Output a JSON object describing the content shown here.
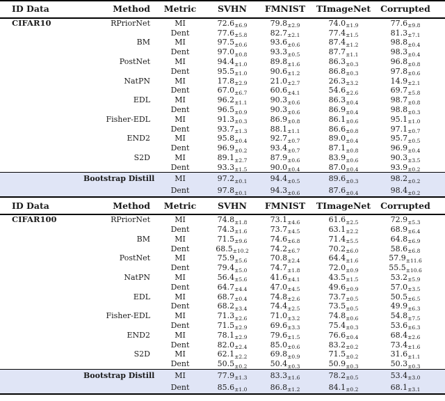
{
  "colors": {
    "highlight_bg": "#e0e5f6",
    "rule": "#000000",
    "text": "#1b1b1b"
  },
  "table": {
    "columns": [
      "ID Data",
      "Method",
      "Metric",
      "SVHN",
      "FMNIST",
      "TImageNet",
      "Corrupted"
    ],
    "sections": [
      {
        "id_data": "CIFAR10",
        "groups": [
          {
            "method": "RPriorNet",
            "rows": [
              {
                "metric": "MI",
                "values": [
                  [
                    "72.6",
                    "6.9"
                  ],
                  [
                    "79.8",
                    "2.9"
                  ],
                  [
                    "74.0",
                    "1.9"
                  ],
                  [
                    "77.6",
                    "9.8"
                  ]
                ]
              },
              {
                "metric": "Dent",
                "values": [
                  [
                    "77.6",
                    "5.8"
                  ],
                  [
                    "82.7",
                    "2.1"
                  ],
                  [
                    "77.4",
                    "1.5"
                  ],
                  [
                    "81.3",
                    "7.1"
                  ]
                ]
              }
            ]
          },
          {
            "method": "BM",
            "rows": [
              {
                "metric": "MI",
                "values": [
                  [
                    "97.5",
                    "0.6"
                  ],
                  [
                    "93.6",
                    "0.6"
                  ],
                  [
                    "87.4",
                    "1.2"
                  ],
                  [
                    "98.8",
                    "0.4"
                  ]
                ]
              },
              {
                "metric": "Dent",
                "values": [
                  [
                    "97.0",
                    "0.8"
                  ],
                  [
                    "93.3",
                    "0.5"
                  ],
                  [
                    "87.7",
                    "1.1"
                  ],
                  [
                    "98.3",
                    "0.4"
                  ]
                ]
              }
            ]
          },
          {
            "method": "PostNet",
            "rows": [
              {
                "metric": "MI",
                "values": [
                  [
                    "94.4",
                    "1.0"
                  ],
                  [
                    "89.8",
                    "1.6"
                  ],
                  [
                    "86.3",
                    "0.3"
                  ],
                  [
                    "96.8",
                    "0.8"
                  ]
                ]
              },
              {
                "metric": "Dent",
                "values": [
                  [
                    "95.5",
                    "1.0"
                  ],
                  [
                    "90.6",
                    "1.2"
                  ],
                  [
                    "86.8",
                    "0.3"
                  ],
                  [
                    "97.8",
                    "0.6"
                  ]
                ]
              }
            ]
          },
          {
            "method": "NatPN",
            "rows": [
              {
                "metric": "MI",
                "values": [
                  [
                    "17.8",
                    "2.9"
                  ],
                  [
                    "21.0",
                    "2.7"
                  ],
                  [
                    "26.3",
                    "3.2"
                  ],
                  [
                    "14.9",
                    "2.1"
                  ]
                ]
              },
              {
                "metric": "Dent",
                "values": [
                  [
                    "67.0",
                    "6.7"
                  ],
                  [
                    "60.6",
                    "4.1"
                  ],
                  [
                    "54.6",
                    "2.6"
                  ],
                  [
                    "69.7",
                    "5.8"
                  ]
                ]
              }
            ]
          },
          {
            "method": "EDL",
            "rows": [
              {
                "metric": "MI",
                "values": [
                  [
                    "96.2",
                    "1.1"
                  ],
                  [
                    "90.3",
                    "0.6"
                  ],
                  [
                    "86.3",
                    "0.4"
                  ],
                  [
                    "98.7",
                    "0.8"
                  ]
                ]
              },
              {
                "metric": "Dent",
                "values": [
                  [
                    "96.5",
                    "0.9"
                  ],
                  [
                    "90.3",
                    "0.6"
                  ],
                  [
                    "86.9",
                    "0.4"
                  ],
                  [
                    "98.8",
                    "0.3"
                  ]
                ]
              }
            ]
          },
          {
            "method": "Fisher-EDL",
            "rows": [
              {
                "metric": "MI",
                "values": [
                  [
                    "91.3",
                    "0.3"
                  ],
                  [
                    "86.9",
                    "0.8"
                  ],
                  [
                    "86.1",
                    "0.6"
                  ],
                  [
                    "95.1",
                    "1.0"
                  ]
                ]
              },
              {
                "metric": "Dent",
                "values": [
                  [
                    "93.7",
                    "1.3"
                  ],
                  [
                    "88.1",
                    "1.1"
                  ],
                  [
                    "86.6",
                    "0.8"
                  ],
                  [
                    "97.1",
                    "0.7"
                  ]
                ]
              }
            ]
          },
          {
            "method": "END2",
            "rows": [
              {
                "metric": "MI",
                "values": [
                  [
                    "95.8",
                    "0.4"
                  ],
                  [
                    "92.7",
                    "0.7"
                  ],
                  [
                    "89.0",
                    "0.4"
                  ],
                  [
                    "95.7",
                    "0.5"
                  ]
                ]
              },
              {
                "metric": "Dent",
                "values": [
                  [
                    "96.9",
                    "0.2"
                  ],
                  [
                    "93.4",
                    "0.7"
                  ],
                  [
                    "87.1",
                    "0.8"
                  ],
                  [
                    "96.9",
                    "0.4"
                  ]
                ]
              }
            ]
          },
          {
            "method": "S2D",
            "rows": [
              {
                "metric": "MI",
                "values": [
                  [
                    "89.1",
                    "2.7"
                  ],
                  [
                    "87.9",
                    "0.6"
                  ],
                  [
                    "83.9",
                    "0.6"
                  ],
                  [
                    "90.3",
                    "3.5"
                  ]
                ]
              },
              {
                "metric": "Dent",
                "values": [
                  [
                    "93.3",
                    "1.5"
                  ],
                  [
                    "90.0",
                    "0.4"
                  ],
                  [
                    "87.0",
                    "0.4"
                  ],
                  [
                    "93.9",
                    "0.2"
                  ]
                ]
              }
            ]
          }
        ],
        "highlight": {
          "method": "Bootstrap Distill",
          "rows": [
            {
              "metric": "MI",
              "values": [
                [
                  "97.2",
                  "0.1"
                ],
                [
                  "94.4",
                  "0.5"
                ],
                [
                  "89.6",
                  "0.3"
                ],
                [
                  "98.2",
                  "0.2"
                ]
              ]
            },
            {
              "metric": "Dent",
              "values": [
                [
                  "97.8",
                  "0.1"
                ],
                [
                  "94.3",
                  "0.6"
                ],
                [
                  "87.6",
                  "0.4"
                ],
                [
                  "98.4",
                  "0.2"
                ]
              ]
            }
          ]
        }
      },
      {
        "id_data": "CIFAR100",
        "groups": [
          {
            "method": "RPriorNet",
            "rows": [
              {
                "metric": "MI",
                "values": [
                  [
                    "74.8",
                    "1.8"
                  ],
                  [
                    "73.1",
                    "4.6"
                  ],
                  [
                    "61.6",
                    "2.5"
                  ],
                  [
                    "72.9",
                    "5.3"
                  ]
                ]
              },
              {
                "metric": "Dent",
                "values": [
                  [
                    "74.3",
                    "1.6"
                  ],
                  [
                    "73.7",
                    "4.5"
                  ],
                  [
                    "63.1",
                    "2.2"
                  ],
                  [
                    "68.9",
                    "6.4"
                  ]
                ]
              }
            ]
          },
          {
            "method": "BM",
            "rows": [
              {
                "metric": "MI",
                "values": [
                  [
                    "71.5",
                    "9.6"
                  ],
                  [
                    "74.6",
                    "6.8"
                  ],
                  [
                    "71.4",
                    "5.5"
                  ],
                  [
                    "64.8",
                    "6.9"
                  ]
                ]
              },
              {
                "metric": "Dent",
                "values": [
                  [
                    "68.5",
                    "10.2"
                  ],
                  [
                    "74.2",
                    "6.7"
                  ],
                  [
                    "70.2",
                    "6.0"
                  ],
                  [
                    "58.6",
                    "6.8"
                  ]
                ]
              }
            ]
          },
          {
            "method": "PostNet",
            "rows": [
              {
                "metric": "MI",
                "values": [
                  [
                    "75.9",
                    "5.6"
                  ],
                  [
                    "70.8",
                    "2.4"
                  ],
                  [
                    "64.4",
                    "1.6"
                  ],
                  [
                    "57.9",
                    "11.6"
                  ]
                ]
              },
              {
                "metric": "Dent",
                "values": [
                  [
                    "79.4",
                    "5.0"
                  ],
                  [
                    "74.7",
                    "1.8"
                  ],
                  [
                    "72.0",
                    "0.9"
                  ],
                  [
                    "55.5",
                    "10.6"
                  ]
                ]
              }
            ]
          },
          {
            "method": "NatPN",
            "rows": [
              {
                "metric": "MI",
                "values": [
                  [
                    "56.4",
                    "5.6"
                  ],
                  [
                    "41.6",
                    "4.1"
                  ],
                  [
                    "43.5",
                    "1.5"
                  ],
                  [
                    "53.2",
                    "5.9"
                  ]
                ]
              },
              {
                "metric": "Dent",
                "values": [
                  [
                    "64.7",
                    "4.4"
                  ],
                  [
                    "47.0",
                    "4.5"
                  ],
                  [
                    "49.6",
                    "0.9"
                  ],
                  [
                    "57.0",
                    "3.5"
                  ]
                ]
              }
            ]
          },
          {
            "method": "EDL",
            "rows": [
              {
                "metric": "MI",
                "values": [
                  [
                    "68.7",
                    "0.4"
                  ],
                  [
                    "74.8",
                    "2.6"
                  ],
                  [
                    "73.7",
                    "0.5"
                  ],
                  [
                    "50.5",
                    "6.5"
                  ]
                ]
              },
              {
                "metric": "Dent",
                "values": [
                  [
                    "68.2",
                    "3.4"
                  ],
                  [
                    "74.4",
                    "2.5"
                  ],
                  [
                    "73.5",
                    "0.5"
                  ],
                  [
                    "49.9",
                    "6.3"
                  ]
                ]
              }
            ]
          },
          {
            "method": "Fisher-EDL",
            "rows": [
              {
                "metric": "MI",
                "values": [
                  [
                    "71.3",
                    "2.6"
                  ],
                  [
                    "71.0",
                    "3.2"
                  ],
                  [
                    "74.8",
                    "0.6"
                  ],
                  [
                    "54.8",
                    "7.5"
                  ]
                ]
              },
              {
                "metric": "Dent",
                "values": [
                  [
                    "71.5",
                    "2.9"
                  ],
                  [
                    "69.6",
                    "3.3"
                  ],
                  [
                    "75.4",
                    "0.3"
                  ],
                  [
                    "53.6",
                    "6.3"
                  ]
                ]
              }
            ]
          },
          {
            "method": "END2",
            "rows": [
              {
                "metric": "MI",
                "values": [
                  [
                    "78.1",
                    "2.9"
                  ],
                  [
                    "79.6",
                    "1.5"
                  ],
                  [
                    "76.6",
                    "0.4"
                  ],
                  [
                    "68.4",
                    "2.6"
                  ]
                ]
              },
              {
                "metric": "Dent",
                "values": [
                  [
                    "82.0",
                    "2.4"
                  ],
                  [
                    "85.0",
                    "0.6"
                  ],
                  [
                    "83.2",
                    "0.2"
                  ],
                  [
                    "73.4",
                    "1.6"
                  ]
                ]
              }
            ]
          },
          {
            "method": "S2D",
            "rows": [
              {
                "metric": "MI",
                "values": [
                  [
                    "62.1",
                    "2.2"
                  ],
                  [
                    "69.8",
                    "0.9"
                  ],
                  [
                    "71.5",
                    "0.2"
                  ],
                  [
                    "31.6",
                    "1.1"
                  ]
                ]
              },
              {
                "metric": "Dent",
                "values": [
                  [
                    "50.5",
                    "0.2"
                  ],
                  [
                    "50.4",
                    "0.3"
                  ],
                  [
                    "50.9",
                    "0.3"
                  ],
                  [
                    "50.3",
                    "0.3"
                  ]
                ]
              }
            ]
          }
        ],
        "highlight": {
          "method": "Bootstrap Distill",
          "rows": [
            {
              "metric": "MI",
              "values": [
                [
                  "77.9",
                  "1.3"
                ],
                [
                  "83.3",
                  "1.6"
                ],
                [
                  "78.2",
                  "0.5"
                ],
                [
                  "53.4",
                  "3.0"
                ]
              ]
            },
            {
              "metric": "Dent",
              "values": [
                [
                  "85.6",
                  "1.0"
                ],
                [
                  "86.8",
                  "1.2"
                ],
                [
                  "84.1",
                  "0.2"
                ],
                [
                  "68.1",
                  "3.1"
                ]
              ]
            }
          ]
        }
      }
    ]
  }
}
